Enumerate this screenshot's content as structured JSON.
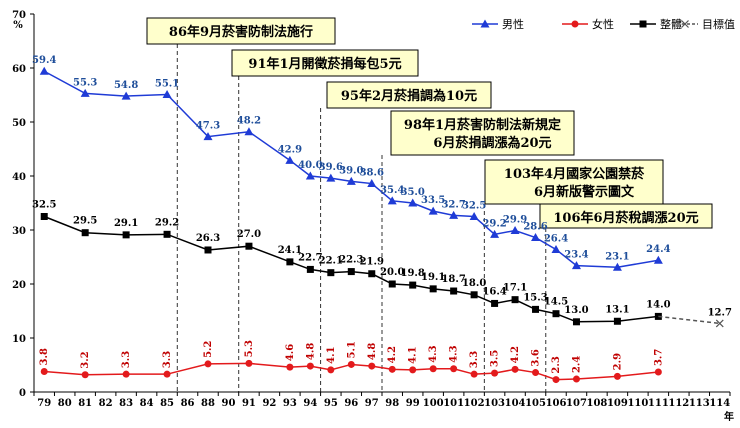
{
  "chart_data": {
    "type": "line",
    "ylabel": "%",
    "xlabel": "年",
    "ylim": [
      0,
      70
    ],
    "yticks": [
      "0",
      "10",
      "20",
      "30",
      "40",
      "50",
      "60",
      "70"
    ],
    "x_categories": [
      "79",
      "80",
      "81",
      "82",
      "83",
      "84",
      "85",
      "86",
      "88",
      "90",
      "91",
      "92",
      "93",
      "94",
      "95",
      "96",
      "97",
      "98",
      "99",
      "100",
      "101",
      "102",
      "103",
      "104",
      "105",
      "106",
      "107",
      "108",
      "109",
      "110",
      "111",
      "112",
      "113",
      "114"
    ],
    "series": [
      {
        "name": "男性",
        "color": "#1f3bd6",
        "label_color": "#1f4e9a",
        "marker": "triangle",
        "x": [
          "79",
          "81",
          "83",
          "85",
          "88",
          "91",
          "93",
          "94",
          "95",
          "96",
          "97",
          "98",
          "99",
          "100",
          "101",
          "102",
          "103",
          "104",
          "105",
          "106",
          "107",
          "109",
          "111"
        ],
        "values": [
          59.4,
          55.3,
          54.8,
          55.1,
          47.3,
          48.2,
          42.9,
          40.0,
          39.6,
          39.0,
          38.6,
          35.4,
          35.0,
          33.5,
          32.7,
          32.5,
          29.2,
          29.9,
          28.6,
          26.4,
          23.4,
          23.1,
          24.4
        ],
        "labels": [
          "59.4",
          "55.3",
          "54.8",
          "55.1",
          "47.3",
          "48.2",
          "42.9",
          "40.0",
          "39.6",
          "39.0",
          "38.6",
          "35.4",
          "35.0",
          "33.5",
          "32.7",
          "32.5",
          "29.2",
          "29.9",
          "28.6",
          "26.4",
          "23.4",
          "23.1",
          "24.4"
        ]
      },
      {
        "name": "女性",
        "color": "#e31a1c",
        "label_color": "#c00000",
        "marker": "circle",
        "x": [
          "79",
          "81",
          "83",
          "85",
          "88",
          "91",
          "93",
          "94",
          "95",
          "96",
          "97",
          "98",
          "99",
          "100",
          "101",
          "102",
          "103",
          "104",
          "105",
          "106",
          "107",
          "109",
          "111"
        ],
        "values": [
          3.8,
          3.2,
          3.3,
          3.3,
          5.2,
          5.3,
          4.6,
          4.8,
          4.1,
          5.1,
          4.8,
          4.2,
          4.1,
          4.3,
          4.3,
          3.3,
          3.5,
          4.2,
          3.6,
          2.3,
          2.4,
          2.9,
          3.7
        ],
        "labels": [
          "3.8",
          "3.2",
          "3.3",
          "3.3",
          "5.2",
          "5.3",
          "4.6",
          "4.8",
          "4.1",
          "5.1",
          "4.8",
          "4.2",
          "4.1",
          "4.3",
          "4.3",
          "3.3",
          "3.5",
          "4.2",
          "3.6",
          "2.3",
          "2.4",
          "2.9",
          "3.7"
        ]
      },
      {
        "name": "整體",
        "color": "#000000",
        "label_color": "#000000",
        "marker": "square",
        "x": [
          "79",
          "81",
          "83",
          "85",
          "88",
          "91",
          "93",
          "94",
          "95",
          "96",
          "97",
          "98",
          "99",
          "100",
          "101",
          "102",
          "103",
          "104",
          "105",
          "106",
          "107",
          "109",
          "111"
        ],
        "values": [
          32.5,
          29.5,
          29.1,
          29.2,
          26.3,
          27.0,
          24.1,
          22.7,
          22.1,
          22.3,
          21.9,
          20.0,
          19.8,
          19.1,
          18.7,
          18.0,
          16.4,
          17.1,
          15.3,
          14.5,
          13.0,
          13.1,
          14.0
        ],
        "labels": [
          "32.5",
          "29.5",
          "29.1",
          "29.2",
          "26.3",
          "27.0",
          "24.1",
          "22.7",
          "22.1",
          "22.3",
          "21.9",
          "20.0",
          "19.8",
          "19.1",
          "18.7",
          "18.0",
          "16.4",
          "17.1",
          "15.3",
          "14.5",
          "13.0",
          "13.1",
          "14.0"
        ]
      },
      {
        "name": "目標值",
        "color": "#555555",
        "label_color": "#000000",
        "marker": "x",
        "dashed": true,
        "x": [
          "111",
          "114"
        ],
        "values": [
          14.0,
          12.7
        ],
        "labels": [
          "",
          "12.7"
        ]
      }
    ],
    "annotations": [
      {
        "text": "86年9月菸害防制法施行",
        "x_line": "86"
      },
      {
        "text": "91年1月開徵菸捐每包5元",
        "x_line": "91"
      },
      {
        "text": "95年2月菸捐調為10元",
        "x_line": "95"
      },
      {
        "text": "98年1月菸害防制法新規定",
        "text2": "6月菸捐調漲為20元",
        "x_line": "98"
      },
      {
        "text": "103年4月國家公園禁菸",
        "text2": "6月新版警示圖文",
        "x_line": "103"
      },
      {
        "text": "106年6月菸稅調漲20元",
        "x_line": "106"
      }
    ],
    "legend_position": "top-right",
    "grid": false
  }
}
